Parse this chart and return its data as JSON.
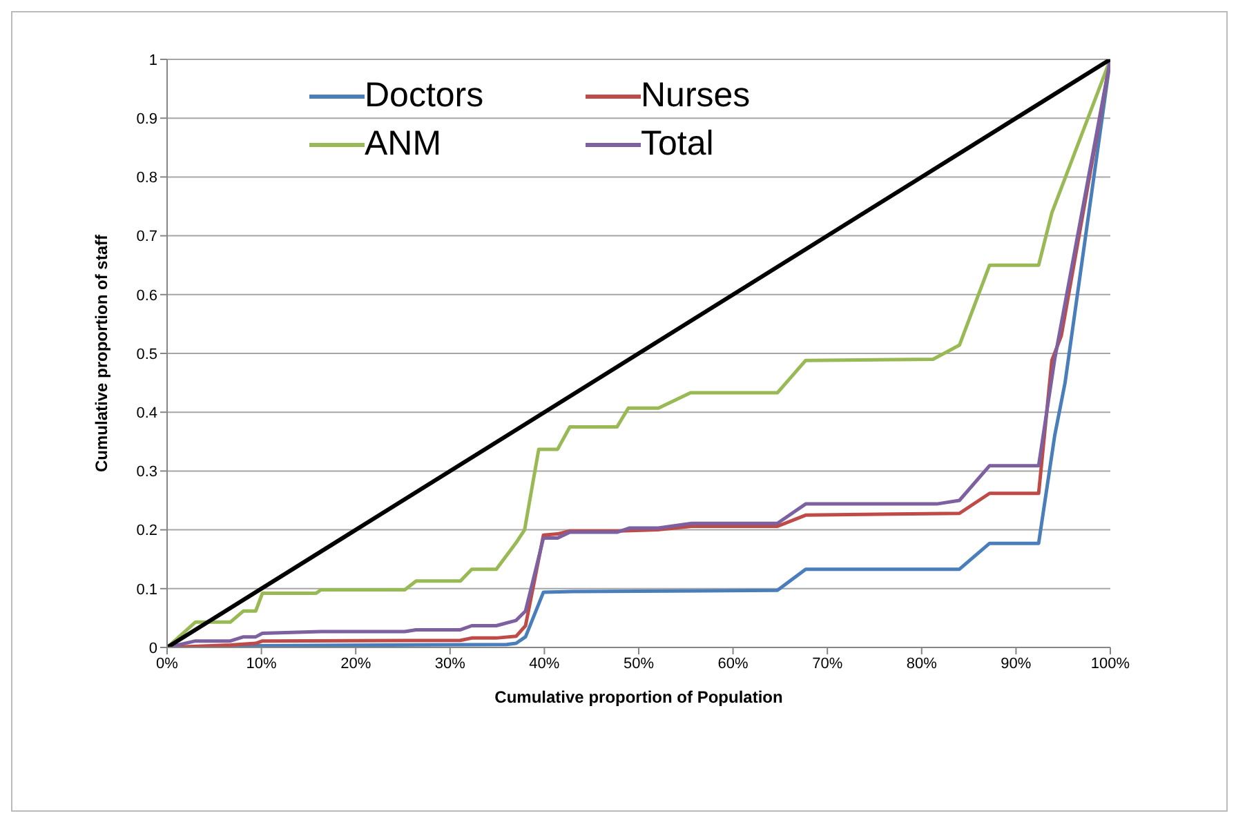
{
  "chart_data": {
    "type": "line",
    "xlabel": "Cumulative proportion of Population",
    "ylabel": "Cumulative proportion of staff",
    "xlim": [
      0,
      100
    ],
    "ylim": [
      0,
      1
    ],
    "xticks": [
      {
        "value": 0,
        "label": "0%"
      },
      {
        "value": 10,
        "label": "10%"
      },
      {
        "value": 20,
        "label": "20%"
      },
      {
        "value": 30,
        "label": "30%"
      },
      {
        "value": 40,
        "label": "40%"
      },
      {
        "value": 50,
        "label": "50%"
      },
      {
        "value": 60,
        "label": "60%"
      },
      {
        "value": 70,
        "label": "70%"
      },
      {
        "value": 80,
        "label": "80%"
      },
      {
        "value": 90,
        "label": "90%"
      },
      {
        "value": 100,
        "label": "100%"
      }
    ],
    "yticks": [
      0,
      0.1,
      0.2,
      0.3,
      0.4,
      0.5,
      0.6,
      0.7,
      0.8,
      0.9,
      1
    ],
    "grid": "y",
    "legend": "top left",
    "series": [
      {
        "name": "Doctors",
        "color": "#4a7ebb",
        "x": [
          0,
          10,
          36,
          37,
          38,
          39.9,
          43,
          64.7,
          67.7,
          84,
          87.2,
          92.4,
          94.1,
          95.2,
          100
        ],
        "values": [
          0,
          0.003,
          0.005,
          0.007,
          0.018,
          0.094,
          0.095,
          0.097,
          0.133,
          0.133,
          0.177,
          0.177,
          0.36,
          0.45,
          1
        ]
      },
      {
        "name": "Nurses",
        "color": "#be4b48",
        "x": [
          0,
          6.7,
          9.4,
          10.1,
          31.1,
          32.3,
          34.9,
          37,
          38,
          39.9,
          41.4,
          42.7,
          48,
          52,
          55.6,
          64.7,
          67.7,
          84,
          87.2,
          92.4,
          93.8,
          94.8,
          100
        ],
        "values": [
          0,
          0.004,
          0.007,
          0.011,
          0.012,
          0.016,
          0.016,
          0.019,
          0.037,
          0.191,
          0.193,
          0.198,
          0.198,
          0.2,
          0.206,
          0.206,
          0.225,
          0.228,
          0.262,
          0.262,
          0.488,
          0.53,
          1
        ]
      },
      {
        "name": "ANM",
        "color": "#98b954",
        "x": [
          0,
          3,
          6.7,
          8.1,
          9.4,
          10.1,
          15.8,
          16.3,
          25.2,
          26.4,
          31.1,
          32.3,
          34.9,
          37,
          37.9,
          39.4,
          41.4,
          42.7,
          47.7,
          48.9,
          52.1,
          55.5,
          64.7,
          67.7,
          81.2,
          84,
          87.2,
          92.4,
          93.8,
          100
        ],
        "values": [
          0,
          0.043,
          0.043,
          0.062,
          0.062,
          0.092,
          0.092,
          0.098,
          0.098,
          0.113,
          0.113,
          0.133,
          0.133,
          0.178,
          0.2,
          0.337,
          0.337,
          0.375,
          0.375,
          0.407,
          0.407,
          0.433,
          0.433,
          0.488,
          0.49,
          0.514,
          0.65,
          0.65,
          0.739,
          1
        ]
      },
      {
        "name": "Total",
        "color": "#7d60a0",
        "x": [
          0,
          3,
          6.7,
          8.1,
          9.4,
          10.1,
          16.3,
          25.2,
          26.4,
          31.1,
          32.3,
          34.9,
          37,
          38,
          39.9,
          41.4,
          42.7,
          47.7,
          49,
          52.1,
          55.6,
          64.7,
          67.7,
          81.6,
          84,
          87.2,
          92.4,
          94.1,
          100
        ],
        "values": [
          0,
          0.011,
          0.011,
          0.018,
          0.018,
          0.024,
          0.027,
          0.027,
          0.03,
          0.03,
          0.037,
          0.037,
          0.046,
          0.062,
          0.186,
          0.186,
          0.196,
          0.196,
          0.203,
          0.203,
          0.211,
          0.211,
          0.244,
          0.244,
          0.25,
          0.309,
          0.309,
          0.49,
          1
        ]
      },
      {
        "color": "#000000",
        "x": [
          0,
          100
        ],
        "values": [
          0,
          1
        ]
      }
    ]
  }
}
